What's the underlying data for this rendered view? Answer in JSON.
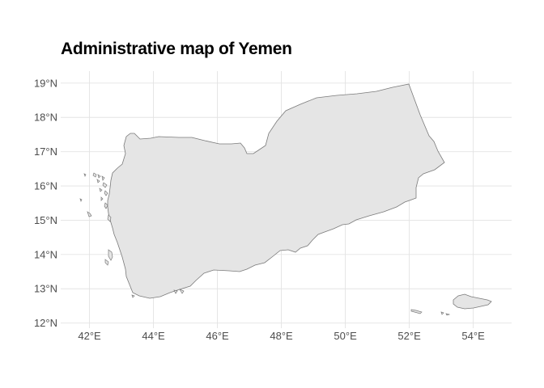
{
  "map": {
    "title": "Administrative map of Yemen",
    "lon_ticks": [
      "42°E",
      "44°E",
      "46°E",
      "48°E",
      "50°E",
      "52°E",
      "54°E"
    ],
    "lat_ticks": [
      "12°N",
      "13°N",
      "14°N",
      "15°N",
      "16°N",
      "17°N",
      "18°N",
      "19°N"
    ],
    "lon_values": [
      42,
      44,
      46,
      48,
      50,
      52,
      54
    ],
    "lat_values": [
      12,
      13,
      14,
      15,
      16,
      17,
      18,
      19
    ],
    "lon_range": [
      41.1,
      55.2
    ],
    "lat_range": [
      11.85,
      19.35
    ],
    "grid": true,
    "colors": {
      "land_fill": "#e5e5e5",
      "land_stroke": "#7a7a7a",
      "grid": "#e3e3e3",
      "tick_text": "#4d4d4d"
    }
  }
}
